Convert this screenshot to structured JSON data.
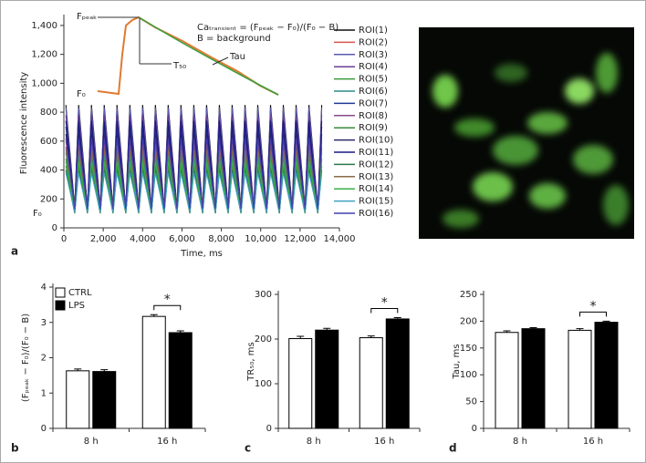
{
  "chart_data": [
    {
      "type": "line",
      "panel_label": "a",
      "xlabel": "Time, ms",
      "ylabel": "Fluorescence intensity",
      "y_marker": "F₀",
      "inset": {
        "fpeak_label": "Fₚₑₐₖ",
        "f0_label": "F₀",
        "formula": "Caₜᵣₐₙₛᵢₑₙₜ = (Fₚₑₐₖ − F₀)/(F₀ − B)",
        "background_note": "B = background",
        "t50_label": "T₅₀",
        "tau_label": "Tau"
      },
      "xlim": [
        0,
        14000
      ],
      "ylim": [
        0,
        1450
      ],
      "xticks": [
        0,
        {
          "value": 2000,
          "label": "2,000"
        },
        {
          "value": 4000,
          "label": "4,000"
        },
        {
          "value": 6000,
          "label": "6,000"
        },
        {
          "value": 8000,
          "label": "8,000"
        },
        {
          "value": 10000,
          "label": "10,000"
        },
        {
          "value": 12000,
          "label": "12,000"
        },
        {
          "value": 14000,
          "label": "14,000"
        }
      ],
      "yticks": [
        0,
        200,
        400,
        600,
        800,
        {
          "value": 1000,
          "label": "1,000"
        },
        {
          "value": 1200,
          "label": "1,200"
        },
        {
          "value": 1400,
          "label": "1,400"
        }
      ],
      "x": [
        100,
        550,
        750,
        1200,
        1400,
        1850,
        2050,
        2500,
        2700,
        3150,
        3350,
        3800,
        4000,
        4450,
        4650,
        5100,
        5300,
        5750,
        5950,
        6400,
        6600,
        7050,
        7250,
        7700,
        7900,
        8350,
        8550,
        9000,
        9200,
        9650,
        9850,
        10300,
        10500,
        10950,
        11150,
        11600,
        11800,
        12250,
        12450,
        12900,
        13100
      ],
      "series": [
        {
          "name": "ROI(1)",
          "color": "#111111",
          "values": [
            850,
            140,
            850,
            140,
            850,
            140,
            850,
            140,
            850,
            140,
            850,
            140,
            850,
            140,
            850,
            140,
            850,
            140,
            850,
            140,
            850,
            140,
            850,
            140,
            850,
            140,
            850,
            140,
            850,
            140,
            850,
            140,
            850,
            140,
            850,
            140,
            850,
            140,
            850,
            140,
            850
          ]
        },
        {
          "name": "ROI(2)",
          "color": "#d9534f",
          "values": [
            600,
            150,
            600,
            150,
            600,
            150,
            600,
            150,
            600,
            150,
            600,
            150,
            600,
            150,
            600,
            150,
            600,
            150,
            600,
            150,
            600,
            150,
            600,
            150,
            600,
            150,
            600,
            150,
            600,
            150,
            600,
            150,
            600,
            150,
            600,
            150,
            600,
            150,
            600,
            150,
            600
          ]
        },
        {
          "name": "ROI(3)",
          "color": "#5a5ab0",
          "values": [
            830,
            120,
            830,
            120,
            830,
            120,
            830,
            120,
            830,
            120,
            830,
            120,
            830,
            120,
            830,
            120,
            830,
            120,
            830,
            120,
            830,
            120,
            830,
            120,
            830,
            120,
            830,
            120,
            830,
            120,
            830,
            120,
            830,
            120,
            830,
            120,
            830,
            120,
            830,
            120,
            830
          ]
        },
        {
          "name": "ROI(4)",
          "color": "#6a3d9a",
          "values": [
            780,
            130,
            780,
            130,
            780,
            130,
            780,
            130,
            780,
            130,
            780,
            130,
            780,
            130,
            780,
            130,
            780,
            130,
            780,
            130,
            780,
            130,
            780,
            130,
            780,
            130,
            780,
            130,
            780,
            130,
            780,
            130,
            780,
            130,
            780,
            130,
            780,
            130,
            780,
            130,
            780
          ]
        },
        {
          "name": "ROI(5)",
          "color": "#3a9a3a",
          "values": [
            480,
            110,
            480,
            110,
            480,
            110,
            480,
            110,
            480,
            110,
            480,
            110,
            480,
            110,
            480,
            110,
            480,
            110,
            480,
            110,
            480,
            110,
            480,
            110,
            480,
            110,
            480,
            110,
            480,
            110,
            480,
            110,
            480,
            110,
            480,
            110,
            480,
            110,
            480,
            110,
            480
          ]
        },
        {
          "name": "ROI(6)",
          "color": "#2a8a8a",
          "values": [
            520,
            120,
            520,
            120,
            520,
            120,
            520,
            120,
            520,
            120,
            520,
            120,
            520,
            120,
            520,
            120,
            520,
            120,
            520,
            120,
            520,
            120,
            520,
            120,
            520,
            120,
            520,
            120,
            520,
            120,
            520,
            120,
            520,
            120,
            520,
            120,
            520,
            120,
            520,
            120,
            520
          ]
        },
        {
          "name": "ROI(7)",
          "color": "#1f3a93",
          "values": [
            700,
            125,
            700,
            125,
            700,
            125,
            700,
            125,
            700,
            125,
            700,
            125,
            700,
            125,
            700,
            125,
            700,
            125,
            700,
            125,
            700,
            125,
            700,
            125,
            700,
            125,
            700,
            125,
            700,
            125,
            700,
            125,
            700,
            125,
            700,
            125,
            700,
            125,
            700,
            125,
            700
          ]
        },
        {
          "name": "ROI(8)",
          "color": "#8a4a8a",
          "values": [
            560,
            145,
            560,
            145,
            560,
            145,
            560,
            145,
            560,
            145,
            560,
            145,
            560,
            145,
            560,
            145,
            560,
            145,
            560,
            145,
            560,
            145,
            560,
            145,
            560,
            145,
            560,
            145,
            560,
            145,
            560,
            145,
            560,
            145,
            560,
            145,
            560,
            145,
            560,
            145,
            560
          ]
        },
        {
          "name": "ROI(9)",
          "color": "#3a8a3a",
          "values": [
            430,
            105,
            430,
            105,
            430,
            105,
            430,
            105,
            430,
            105,
            430,
            105,
            430,
            105,
            430,
            105,
            430,
            105,
            430,
            105,
            430,
            105,
            430,
            105,
            430,
            105,
            430,
            105,
            430,
            105,
            430,
            105,
            430,
            105,
            430,
            105,
            430,
            105,
            430,
            105,
            430
          ]
        },
        {
          "name": "ROI(10)",
          "color": "#2a2a6a",
          "values": [
            650,
            135,
            650,
            135,
            650,
            135,
            650,
            135,
            650,
            135,
            650,
            135,
            650,
            135,
            650,
            135,
            650,
            135,
            650,
            135,
            650,
            135,
            650,
            135,
            650,
            135,
            650,
            135,
            650,
            135,
            650,
            135,
            650,
            135,
            650,
            135,
            650,
            135,
            650,
            135,
            650
          ]
        },
        {
          "name": "ROI(11)",
          "color": "#1a1a80",
          "values": [
            740,
            115,
            740,
            115,
            740,
            115,
            740,
            115,
            740,
            115,
            740,
            115,
            740,
            115,
            740,
            115,
            740,
            115,
            740,
            115,
            740,
            115,
            740,
            115,
            740,
            115,
            740,
            115,
            740,
            115,
            740,
            115,
            740,
            115,
            740,
            115,
            740,
            115,
            740,
            115,
            740
          ]
        },
        {
          "name": "ROI(12)",
          "color": "#2a7a4a",
          "values": [
            400,
            100,
            400,
            100,
            400,
            100,
            400,
            100,
            400,
            100,
            400,
            100,
            400,
            100,
            400,
            100,
            400,
            100,
            400,
            100,
            400,
            100,
            400,
            100,
            400,
            100,
            400,
            100,
            400,
            100,
            400,
            100,
            400,
            100,
            400,
            100,
            400,
            100,
            400,
            100,
            400
          ]
        },
        {
          "name": "ROI(13)",
          "color": "#8a6a4a",
          "values": [
            540,
            150,
            540,
            150,
            540,
            150,
            540,
            150,
            540,
            150,
            540,
            150,
            540,
            150,
            540,
            150,
            540,
            150,
            540,
            150,
            540,
            150,
            540,
            150,
            540,
            150,
            540,
            150,
            540,
            150,
            540,
            150,
            540,
            150,
            540,
            150,
            540,
            150,
            540,
            150,
            540
          ]
        },
        {
          "name": "ROI(14)",
          "color": "#3ab04a",
          "values": [
            460,
            120,
            460,
            120,
            460,
            120,
            460,
            120,
            460,
            120,
            460,
            120,
            460,
            120,
            460,
            120,
            460,
            120,
            460,
            120,
            460,
            120,
            460,
            120,
            460,
            120,
            460,
            120,
            460,
            120,
            460,
            120,
            460,
            120,
            460,
            120,
            460,
            120,
            460,
            120,
            460
          ]
        },
        {
          "name": "ROI(15)",
          "color": "#40a0c0",
          "values": [
            380,
            110,
            380,
            110,
            380,
            110,
            380,
            110,
            380,
            110,
            380,
            110,
            380,
            110,
            380,
            110,
            380,
            110,
            380,
            110,
            380,
            110,
            380,
            110,
            380,
            110,
            380,
            110,
            380,
            110,
            380,
            110,
            380,
            110,
            380,
            110,
            380,
            110,
            380,
            110,
            380
          ]
        },
        {
          "name": "ROI(16)",
          "color": "#4040b0",
          "values": [
            620,
            130,
            620,
            130,
            620,
            130,
            620,
            130,
            620,
            130,
            620,
            130,
            620,
            130,
            620,
            130,
            620,
            130,
            620,
            130,
            620,
            130,
            620,
            130,
            620,
            130,
            620,
            130,
            620,
            130,
            620,
            130,
            620,
            130,
            620,
            130,
            620,
            130,
            620,
            130,
            620
          ]
        }
      ]
    },
    {
      "type": "bar",
      "panel_label": "b",
      "ylabel": "(Fₚₑₐₖ − F₀)/(F₀ − B)",
      "legend": true,
      "significance": "*",
      "categories": [
        "8 h",
        "16 h"
      ],
      "ylim": [
        0,
        4
      ],
      "yticks": [
        0,
        1,
        2,
        3,
        4
      ],
      "series": [
        {
          "name": "CTRL",
          "color": "#ffffff",
          "values": [
            1.63,
            3.17
          ],
          "errors": [
            0.05,
            0.05
          ]
        },
        {
          "name": "LPS",
          "color": "#000000",
          "values": [
            1.61,
            2.71
          ],
          "errors": [
            0.05,
            0.05
          ]
        }
      ]
    },
    {
      "type": "bar",
      "panel_label": "c",
      "ylabel": "TR₅₀, ms",
      "legend": false,
      "significance": "*",
      "categories": [
        "8 h",
        "16 h"
      ],
      "ylim": [
        0,
        300
      ],
      "yticks": [
        0,
        100,
        200,
        300
      ],
      "series": [
        {
          "color": "#ffffff",
          "values": [
            201,
            203
          ],
          "errors": [
            5,
            4
          ]
        },
        {
          "color": "#000000",
          "values": [
            220,
            245
          ],
          "errors": [
            4,
            3
          ]
        }
      ]
    },
    {
      "type": "bar",
      "panel_label": "d",
      "ylabel": "Tau, ms",
      "legend": false,
      "significance": "*",
      "categories": [
        "8 h",
        "16 h"
      ],
      "ylim": [
        0,
        250
      ],
      "yticks": [
        0,
        50,
        100,
        150,
        200,
        250
      ],
      "series": [
        {
          "color": "#ffffff",
          "values": [
            179,
            183
          ],
          "errors": [
            3,
            3
          ]
        },
        {
          "color": "#000000",
          "values": [
            186,
            198
          ],
          "errors": [
            2,
            2
          ]
        }
      ]
    }
  ]
}
